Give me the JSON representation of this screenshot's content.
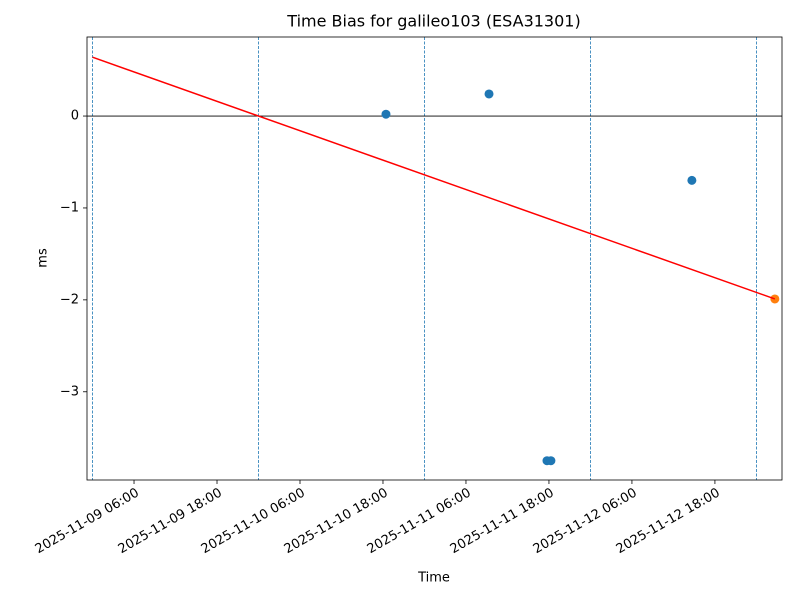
{
  "chart_data": {
    "type": "scatter",
    "title": "Time Bias for galileo103 (ESA31301)",
    "xlabel": "Time",
    "ylabel": "ms",
    "xlim": [
      "2025-11-08 23:12",
      "2025-11-13 03:42"
    ],
    "xticks": [
      "2025-11-09 06:00",
      "2025-11-09 18:00",
      "2025-11-10 06:00",
      "2025-11-10 18:00",
      "2025-11-11 06:00",
      "2025-11-11 18:00",
      "2025-11-12 06:00",
      "2025-11-12 18:00"
    ],
    "ylim": [
      -3.96,
      0.86
    ],
    "yticks": [
      {
        "value": -3,
        "label": "−3"
      },
      {
        "value": -2,
        "label": "−2"
      },
      {
        "value": -1,
        "label": "−1"
      },
      0
    ],
    "hlines": [
      0
    ],
    "hline_color": "#000000",
    "vlines": [
      "2025-11-09 00:00",
      "2025-11-10 00:00",
      "2025-11-11 00:00",
      "2025-11-12 00:00",
      "2025-11-13 00:00"
    ],
    "vline_color": "#1f77b4",
    "series": [
      {
        "type": "scatter",
        "color": "#1f77b4",
        "x": [
          "2025-11-10 18:26",
          "2025-11-11 09:20",
          "2025-11-11 17:43",
          "2025-11-11 18:17",
          "2025-11-12 14:40"
        ],
        "values": [
          0.02,
          0.24,
          -3.75,
          -3.75,
          -0.7
        ]
      },
      {
        "type": "scatter",
        "color": "#ff7f0e",
        "x": [
          "2025-11-13 02:40"
        ],
        "values": [
          -1.99
        ]
      },
      {
        "type": "line",
        "color": "#ff0000",
        "x": [
          "2025-11-09 00:00",
          "2025-11-13 02:40"
        ],
        "values": [
          0.64,
          -1.99
        ]
      }
    ]
  }
}
